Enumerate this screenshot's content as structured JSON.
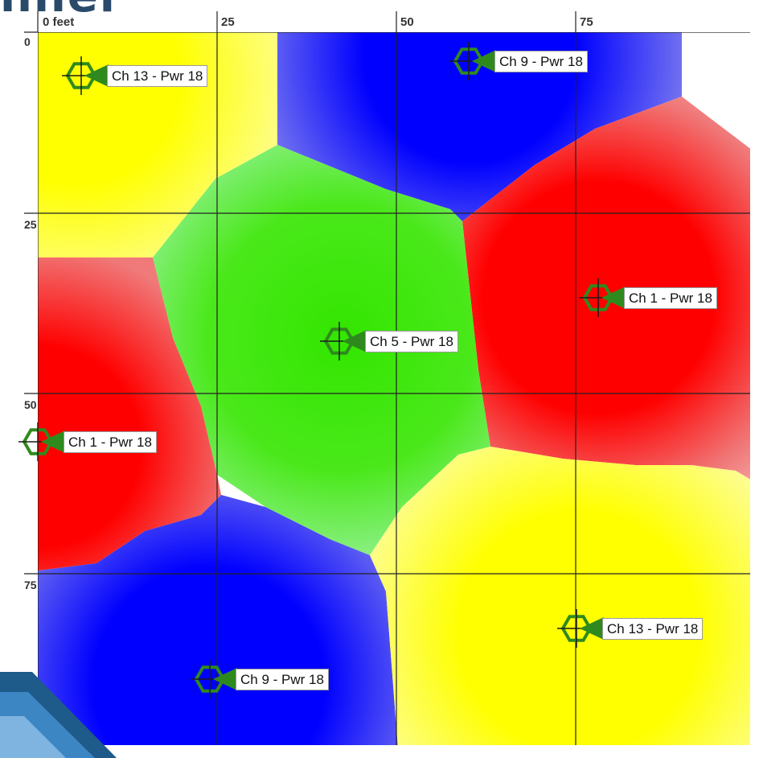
{
  "heading_fragment": "nnel",
  "ruler": {
    "unit": "feet",
    "x_ticks": [
      "0 feet",
      "25",
      "50",
      "75"
    ],
    "y_ticks": [
      "0",
      "25",
      "50",
      "75"
    ]
  },
  "colors": {
    "channel_1": "#ff0000",
    "channel_5": "#33e600",
    "channel_9": "#0000ff",
    "channel_13": "#ffff00",
    "ap_icon": "#2f8a1e",
    "grid": "#222222",
    "slide_accent": "#1e5a8a"
  },
  "access_points": [
    {
      "id": "ap-ch13-top-left",
      "label": "Ch 13 - Pwr 18",
      "channel": 13,
      "power": 18,
      "x_ft": 6,
      "y_ft": 6
    },
    {
      "id": "ap-ch9-top",
      "label": "Ch 9 - Pwr 18",
      "channel": 9,
      "power": 18,
      "x_ft": 60,
      "y_ft": 4
    },
    {
      "id": "ap-ch1-right",
      "label": "Ch 1 - Pwr 18",
      "channel": 1,
      "power": 18,
      "x_ft": 78,
      "y_ft": 37
    },
    {
      "id": "ap-ch5-center",
      "label": "Ch 5 - Pwr 18",
      "channel": 5,
      "power": 18,
      "x_ft": 42,
      "y_ft": 43
    },
    {
      "id": "ap-ch1-left",
      "label": "Ch 1 - Pwr 18",
      "channel": 1,
      "power": 18,
      "x_ft": 0,
      "y_ft": 57
    },
    {
      "id": "ap-ch13-bottom-right",
      "label": "Ch 13 - Pwr 18",
      "channel": 13,
      "power": 18,
      "x_ft": 75,
      "y_ft": 83
    },
    {
      "id": "ap-ch9-bottom",
      "label": "Ch 9 - Pwr 18",
      "channel": 9,
      "power": 18,
      "x_ft": 24,
      "y_ft": 90
    }
  ]
}
